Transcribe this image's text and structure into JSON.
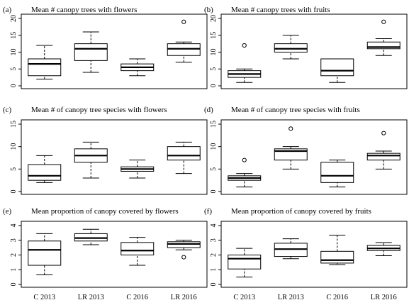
{
  "chart_data": [
    {
      "type": "box",
      "panel": "(a)",
      "title": "Mean # canopy trees with flowers",
      "ylim": [
        0,
        20
      ],
      "yticks": [
        0,
        5,
        10,
        15,
        20
      ],
      "categories": [
        "C 2013",
        "LR 2013",
        "C 2016",
        "LR 2016"
      ],
      "boxes": [
        {
          "min": 2,
          "q1": 3,
          "median": 6.5,
          "q3": 8,
          "max": 12,
          "outliers": []
        },
        {
          "min": 4,
          "q1": 7.5,
          "median": 11,
          "q3": 12.5,
          "max": 16,
          "outliers": []
        },
        {
          "min": 3,
          "q1": 4.5,
          "median": 5.5,
          "q3": 6.5,
          "max": 8,
          "outliers": []
        },
        {
          "min": 7,
          "q1": 9,
          "median": 11,
          "q3": 12.5,
          "max": 13,
          "outliers": [
            19
          ]
        }
      ]
    },
    {
      "type": "box",
      "panel": "(b)",
      "title": "Mean # canopy trees with fruits",
      "ylim": [
        0,
        20
      ],
      "yticks": [
        0,
        5,
        10,
        15,
        20
      ],
      "categories": [
        "C 2013",
        "LR 2013",
        "C 2016",
        "LR 2016"
      ],
      "boxes": [
        {
          "min": 1,
          "q1": 2.5,
          "median": 3.5,
          "q3": 4.5,
          "max": 5,
          "outliers": [
            12
          ]
        },
        {
          "min": 8,
          "q1": 10,
          "median": 11,
          "q3": 12.5,
          "max": 15,
          "outliers": []
        },
        {
          "min": 1,
          "q1": 3,
          "median": 4.5,
          "q3": 8,
          "max": 8,
          "outliers": []
        },
        {
          "min": 9,
          "q1": 11,
          "median": 11.5,
          "q3": 13,
          "max": 14,
          "outliers": [
            19
          ]
        }
      ]
    },
    {
      "type": "box",
      "panel": "(c)",
      "title": "Mean # of canopy tree species with flowers",
      "ylim": [
        0,
        15
      ],
      "yticks": [
        0,
        5,
        10,
        15
      ],
      "categories": [
        "C 2013",
        "LR 2013",
        "C 2016",
        "LR 2016"
      ],
      "boxes": [
        {
          "min": 2,
          "q1": 2.5,
          "median": 3.5,
          "q3": 6,
          "max": 8,
          "outliers": []
        },
        {
          "min": 3,
          "q1": 6.5,
          "median": 8,
          "q3": 9.5,
          "max": 11,
          "outliers": []
        },
        {
          "min": 3,
          "q1": 4.5,
          "median": 5,
          "q3": 5.5,
          "max": 7,
          "outliers": []
        },
        {
          "min": 4,
          "q1": 7,
          "median": 8,
          "q3": 10,
          "max": 11,
          "outliers": []
        }
      ]
    },
    {
      "type": "box",
      "panel": "(d)",
      "title": "Mean # of canopy tree species with fruits",
      "ylim": [
        0,
        15
      ],
      "yticks": [
        0,
        5,
        10,
        15
      ],
      "categories": [
        "C 2013",
        "LR 2013",
        "C 2016",
        "LR 2016"
      ],
      "boxes": [
        {
          "min": 1,
          "q1": 2.5,
          "median": 3,
          "q3": 3.5,
          "max": 4,
          "outliers": [
            7
          ]
        },
        {
          "min": 5,
          "q1": 7,
          "median": 9,
          "q3": 9.5,
          "max": 10,
          "outliers": [
            14
          ]
        },
        {
          "min": 1,
          "q1": 2,
          "median": 3.5,
          "q3": 6.5,
          "max": 7,
          "outliers": []
        },
        {
          "min": 5,
          "q1": 7,
          "median": 8,
          "q3": 8.5,
          "max": 9,
          "outliers": [
            13
          ]
        }
      ]
    },
    {
      "type": "box",
      "panel": "(e)",
      "title": "Mean proportion of canopy covered by flowers",
      "ylim": [
        0,
        4
      ],
      "yticks": [
        0,
        1,
        2,
        3,
        4
      ],
      "categories": [
        "C 2013",
        "LR 2013",
        "C 2016",
        "LR 2016"
      ],
      "boxes": [
        {
          "min": 0.65,
          "q1": 1.3,
          "median": 2.35,
          "q3": 2.95,
          "max": 3.45,
          "outliers": []
        },
        {
          "min": 2.7,
          "q1": 2.95,
          "median": 3.15,
          "q3": 3.45,
          "max": 3.75,
          "outliers": []
        },
        {
          "min": 1.3,
          "q1": 2.0,
          "median": 2.3,
          "q3": 2.85,
          "max": 3.2,
          "outliers": []
        },
        {
          "min": 2.35,
          "q1": 2.5,
          "median": 2.75,
          "q3": 2.9,
          "max": 3.0,
          "outliers": [
            1.85
          ]
        }
      ]
    },
    {
      "type": "box",
      "panel": "(f)",
      "title": "Mean proportion of canopy covered by fruits",
      "ylim": [
        0,
        4
      ],
      "yticks": [
        0,
        1,
        2,
        3,
        4
      ],
      "categories": [
        "C 2013",
        "LR 2013",
        "C 2016",
        "LR 2016"
      ],
      "boxes": [
        {
          "min": 0.5,
          "q1": 1.05,
          "median": 1.75,
          "q3": 2.0,
          "max": 2.45,
          "outliers": []
        },
        {
          "min": 1.75,
          "q1": 1.9,
          "median": 2.4,
          "q3": 2.8,
          "max": 3.1,
          "outliers": []
        },
        {
          "min": 1.35,
          "q1": 1.45,
          "median": 1.65,
          "q3": 2.25,
          "max": 3.35,
          "outliers": []
        },
        {
          "min": 1.95,
          "q1": 2.3,
          "median": 2.45,
          "q3": 2.65,
          "max": 2.85,
          "outliers": []
        }
      ]
    }
  ]
}
